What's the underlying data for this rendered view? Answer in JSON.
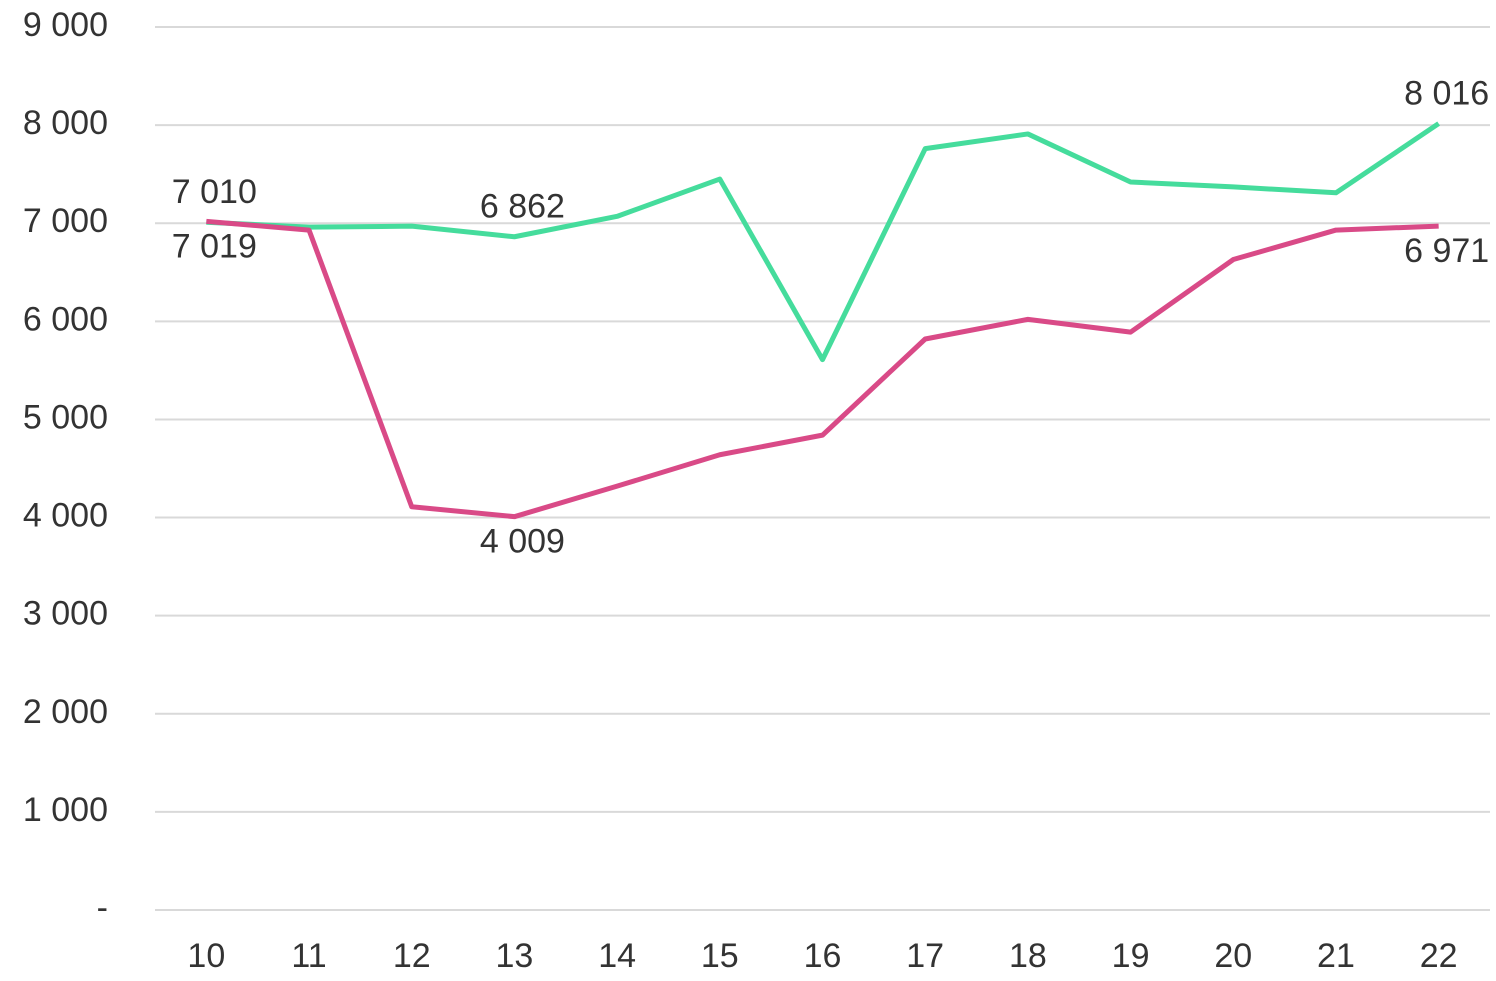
{
  "chart_data": {
    "type": "line",
    "categories": [
      "10",
      "11",
      "12",
      "13",
      "14",
      "15",
      "16",
      "17",
      "18",
      "19",
      "20",
      "21",
      "22"
    ],
    "series": [
      {
        "color": "#45dc9c",
        "values": [
          7010,
          6960,
          6970,
          6862,
          7070,
          7450,
          5610,
          7760,
          7910,
          7420,
          7370,
          7310,
          8016
        ],
        "value_labels": [
          "7 010",
          null,
          null,
          "6 862",
          null,
          null,
          null,
          null,
          null,
          null,
          null,
          null,
          "8 016"
        ]
      },
      {
        "color": "#d94a87",
        "values": [
          7019,
          6930,
          4110,
          4009,
          4320,
          4640,
          4840,
          5820,
          6020,
          5890,
          6630,
          6930,
          6971
        ],
        "value_labels": [
          "7 019",
          null,
          null,
          "4 009",
          null,
          null,
          null,
          null,
          null,
          null,
          null,
          null,
          "6 971"
        ]
      }
    ],
    "ylim": [
      0,
      9000
    ],
    "yticks": [
      {
        "value": 0,
        "label": "-"
      },
      {
        "value": 1000,
        "label": "1 000"
      },
      {
        "value": 2000,
        "label": "2 000"
      },
      {
        "value": 3000,
        "label": "3 000"
      },
      {
        "value": 4000,
        "label": "4 000"
      },
      {
        "value": 5000,
        "label": "5 000"
      },
      {
        "value": 6000,
        "label": "6 000"
      },
      {
        "value": 7000,
        "label": "7 000"
      },
      {
        "value": 8000,
        "label": "8 000"
      },
      {
        "value": 9000,
        "label": "9 000"
      }
    ],
    "grid": true
  }
}
